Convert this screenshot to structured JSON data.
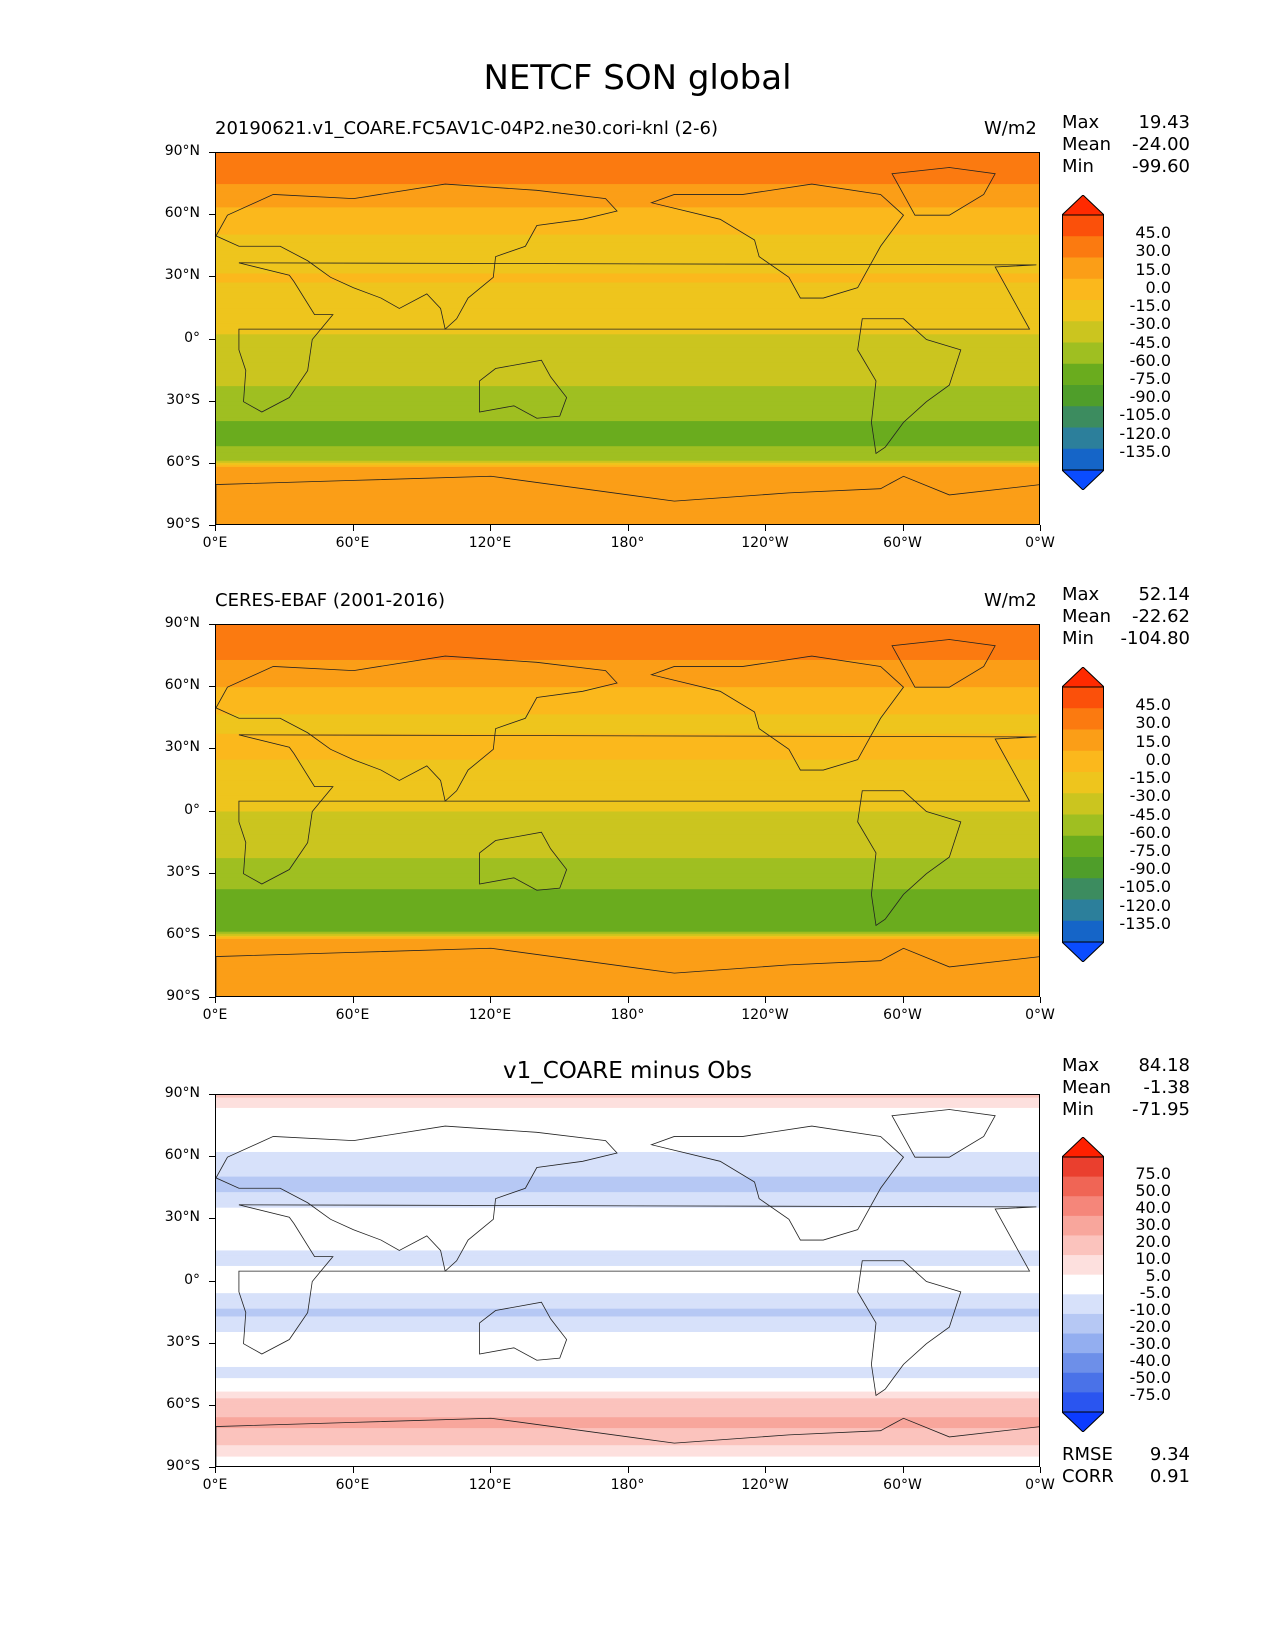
{
  "figure": {
    "title": "NETCF SON global"
  },
  "axes": {
    "yticks": [
      "90°N",
      "60°N",
      "30°N",
      "0°",
      "30°S",
      "60°S",
      "90°S"
    ],
    "xticks": [
      "0°E",
      "60°E",
      "120°E",
      "180°",
      "120°W",
      "60°W",
      "0°W"
    ]
  },
  "panels": [
    {
      "title": "20190621.v1_COARE.FC5AV1C-04P2.ne30.cori-knl (2-6)",
      "units": "W/m2",
      "stats": [
        {
          "label": "Max",
          "value": "19.43"
        },
        {
          "label": "Mean",
          "value": "-24.00"
        },
        {
          "label": "Min",
          "value": "-99.60"
        }
      ],
      "colorbar_labels": [
        "45.0",
        "30.0",
        "15.0",
        "0.0",
        "-15.0",
        "-30.0",
        "-45.0",
        "-60.0",
        "-75.0",
        "-90.0",
        "-105.0",
        "-120.0",
        "-135.0"
      ]
    },
    {
      "title": "CERES-EBAF (2001-2016)",
      "units": "W/m2",
      "stats": [
        {
          "label": "Max",
          "value": "52.14"
        },
        {
          "label": "Mean",
          "value": "-22.62"
        },
        {
          "label": "Min",
          "value": "-104.80"
        }
      ],
      "colorbar_labels": [
        "45.0",
        "30.0",
        "15.0",
        "0.0",
        "-15.0",
        "-30.0",
        "-45.0",
        "-60.0",
        "-75.0",
        "-90.0",
        "-105.0",
        "-120.0",
        "-135.0"
      ]
    },
    {
      "title": "v1_COARE minus Obs",
      "stats": [
        {
          "label": "Max",
          "value": "84.18"
        },
        {
          "label": "Mean",
          "value": "-1.38"
        },
        {
          "label": "Min",
          "value": "-71.95"
        }
      ],
      "colorbar_labels": [
        "75.0",
        "50.0",
        "40.0",
        "30.0",
        "20.0",
        "10.0",
        "5.0",
        "-5.0",
        "-10.0",
        "-20.0",
        "-30.0",
        "-40.0",
        "-50.0",
        "-75.0"
      ],
      "metrics": [
        {
          "label": "RMSE",
          "value": "9.34"
        },
        {
          "label": "CORR",
          "value": "0.91"
        }
      ]
    }
  ],
  "chart_data": [
    {
      "type": "heatmap",
      "title": "20190621.v1_COARE.FC5AV1C-04P2.ne30.cori-knl (2-6)",
      "units": "W/m2",
      "xlim": [
        0,
        360
      ],
      "ylim": [
        -90,
        90
      ],
      "max": 19.43,
      "mean": -24.0,
      "min": -99.6,
      "levels": [
        -135,
        -120,
        -105,
        -90,
        -75,
        -60,
        -45,
        -30,
        -15,
        0,
        15,
        30,
        45
      ],
      "colors": [
        "#0a4cff",
        "#1565c8",
        "#2c7f9b",
        "#3c8c5f",
        "#4f9e2a",
        "#6aac1e",
        "#9fbf21",
        "#cbc51f",
        "#eec51d",
        "#fbb81c",
        "#fb9e17",
        "#fb7a10",
        "#fb500a",
        "#ff2a00"
      ]
    },
    {
      "type": "heatmap",
      "title": "CERES-EBAF (2001-2016)",
      "units": "W/m2",
      "xlim": [
        0,
        360
      ],
      "ylim": [
        -90,
        90
      ],
      "max": 52.14,
      "mean": -22.62,
      "min": -104.8,
      "levels": [
        -135,
        -120,
        -105,
        -90,
        -75,
        -60,
        -45,
        -30,
        -15,
        0,
        15,
        30,
        45
      ],
      "colors": [
        "#0a4cff",
        "#1565c8",
        "#2c7f9b",
        "#3c8c5f",
        "#4f9e2a",
        "#6aac1e",
        "#9fbf21",
        "#cbc51f",
        "#eec51d",
        "#fbb81c",
        "#fb9e17",
        "#fb7a10",
        "#fb500a",
        "#ff2a00"
      ]
    },
    {
      "type": "heatmap",
      "title": "v1_COARE minus Obs",
      "xlim": [
        0,
        360
      ],
      "ylim": [
        -90,
        90
      ],
      "max": 84.18,
      "mean": -1.38,
      "min": -71.95,
      "rmse": 9.34,
      "corr": 0.91,
      "levels": [
        -75,
        -50,
        -40,
        -30,
        -20,
        -10,
        -5,
        5,
        10,
        20,
        30,
        40,
        50,
        75
      ],
      "colors": [
        "#0b3bff",
        "#2a55f0",
        "#4a72e8",
        "#6d8fe9",
        "#93aef0",
        "#b6c8f4",
        "#d7e1fa",
        "#ffffff",
        "#fde0de",
        "#fbc3bd",
        "#f8a69c",
        "#f5867a",
        "#f06555",
        "#ea3f2e",
        "#ff2000"
      ]
    }
  ]
}
